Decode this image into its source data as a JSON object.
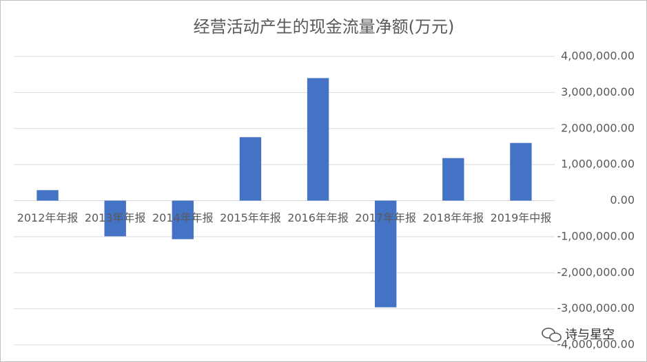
{
  "chart_data": {
    "type": "bar",
    "title": "经营活动产生的现金流量净额(万元)",
    "categories": [
      "2012年年报",
      "2013年年报",
      "2014年年报",
      "2015年年报",
      "2016年年报",
      "2017年年报",
      "2018年年报",
      "2019年中报"
    ],
    "values": [
      290000,
      -990000,
      -1070000,
      1760000,
      3400000,
      -2960000,
      1180000,
      1600000
    ],
    "color": "#4472c4",
    "ylim": [
      -4000000,
      4000000
    ],
    "yticks": [
      {
        "value": 4000000,
        "label": "4,000,000.00"
      },
      {
        "value": 3000000,
        "label": "3,000,000.00"
      },
      {
        "value": 2000000,
        "label": "2,000,000.00"
      },
      {
        "value": 1000000,
        "label": "1,000,000.00"
      },
      {
        "value": 0,
        "label": "0.00"
      },
      {
        "value": -1000000,
        "label": "-1,000,000.00"
      },
      {
        "value": -2000000,
        "label": "-2,000,000.00"
      },
      {
        "value": -3000000,
        "label": "-3,000,000.00"
      },
      {
        "value": -4000000,
        "label": "-4,000,000.00"
      }
    ],
    "grid": true,
    "watermark": "诗与星空"
  }
}
